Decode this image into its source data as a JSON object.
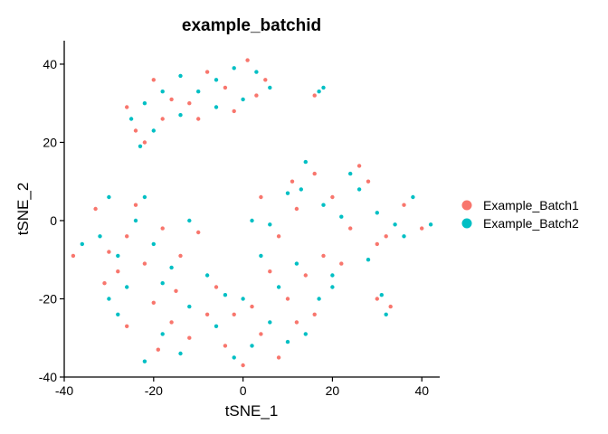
{
  "chart_data": {
    "type": "scatter",
    "title": "example_batchid",
    "xlabel": "tSNE_1",
    "ylabel": "tSNE_2",
    "xlim": [
      -40,
      44
    ],
    "ylim": [
      -40,
      46
    ],
    "xticks": [
      {
        "value": -40,
        "label": "-40"
      },
      {
        "value": -20,
        "label": "-20"
      },
      {
        "value": 0,
        "label": "0"
      },
      {
        "value": 20,
        "label": "20"
      },
      {
        "value": 40,
        "label": "40"
      }
    ],
    "yticks": [
      {
        "value": -40,
        "label": "-40"
      },
      {
        "value": -20,
        "label": "-20"
      },
      {
        "value": 0,
        "label": "0"
      },
      {
        "value": 20,
        "label": "20"
      },
      {
        "value": 40,
        "label": "40"
      }
    ],
    "grid": false,
    "legend_position": "right",
    "series": [
      {
        "name": "Example_Batch1",
        "color": "#F8766D",
        "points": [
          [
            -26,
            29
          ],
          [
            -24,
            23
          ],
          [
            -20,
            36
          ],
          [
            -16,
            31
          ],
          [
            -12,
            30
          ],
          [
            -8,
            38
          ],
          [
            -4,
            34
          ],
          [
            -2,
            28
          ],
          [
            1,
            41
          ],
          [
            5,
            36
          ],
          [
            -18,
            26
          ],
          [
            -10,
            26
          ],
          [
            3,
            32
          ],
          [
            -22,
            20
          ],
          [
            -30,
            -8
          ],
          [
            -26,
            -4
          ],
          [
            -22,
            -11
          ],
          [
            -18,
            -2
          ],
          [
            -14,
            -9
          ],
          [
            -10,
            -3
          ],
          [
            -33,
            3
          ],
          [
            -20,
            -21
          ],
          [
            -15,
            -18
          ],
          [
            -28,
            -13
          ],
          [
            -24,
            4
          ],
          [
            -8,
            -24
          ],
          [
            -4,
            -32
          ],
          [
            0,
            -37
          ],
          [
            4,
            -29
          ],
          [
            8,
            -35
          ],
          [
            -12,
            -30
          ],
          [
            -16,
            -26
          ],
          [
            12,
            -26
          ],
          [
            2,
            -22
          ],
          [
            -6,
            -17
          ],
          [
            6,
            -13
          ],
          [
            10,
            -20
          ],
          [
            14,
            -14
          ],
          [
            16,
            -24
          ],
          [
            8,
            -4
          ],
          [
            12,
            3
          ],
          [
            16,
            12
          ],
          [
            20,
            6
          ],
          [
            24,
            -2
          ],
          [
            28,
            10
          ],
          [
            32,
            -4
          ],
          [
            36,
            4
          ],
          [
            40,
            -2
          ],
          [
            18,
            -9
          ],
          [
            26,
            14
          ],
          [
            30,
            -6
          ],
          [
            22,
            -11
          ],
          [
            4,
            6
          ],
          [
            -38,
            -9
          ],
          [
            16,
            32
          ],
          [
            30,
            -20
          ],
          [
            33,
            -22
          ],
          [
            11,
            10
          ],
          [
            -31,
            -16
          ],
          [
            -19,
            -33
          ],
          [
            -2,
            -24
          ],
          [
            -26,
            -27
          ]
        ]
      },
      {
        "name": "Example_Batch2",
        "color": "#00BFC4",
        "points": [
          [
            -25,
            26
          ],
          [
            -22,
            30
          ],
          [
            -18,
            33
          ],
          [
            -14,
            37
          ],
          [
            -10,
            33
          ],
          [
            -6,
            36
          ],
          [
            -2,
            39
          ],
          [
            3,
            38
          ],
          [
            6,
            34
          ],
          [
            -20,
            23
          ],
          [
            -14,
            27
          ],
          [
            -6,
            29
          ],
          [
            0,
            31
          ],
          [
            -23,
            19
          ],
          [
            -32,
            -4
          ],
          [
            -28,
            -9
          ],
          [
            -24,
            0
          ],
          [
            -20,
            -6
          ],
          [
            -16,
            -12
          ],
          [
            -12,
            0
          ],
          [
            -30,
            6
          ],
          [
            -18,
            -16
          ],
          [
            -12,
            -22
          ],
          [
            -26,
            -17
          ],
          [
            -22,
            6
          ],
          [
            -6,
            -27
          ],
          [
            -2,
            -35
          ],
          [
            2,
            -32
          ],
          [
            6,
            -26
          ],
          [
            10,
            -31
          ],
          [
            -14,
            -34
          ],
          [
            -18,
            -29
          ],
          [
            14,
            -29
          ],
          [
            0,
            -20
          ],
          [
            -8,
            -14
          ],
          [
            4,
            -9
          ],
          [
            8,
            -17
          ],
          [
            12,
            -11
          ],
          [
            17,
            -20
          ],
          [
            6,
            -1
          ],
          [
            10,
            7
          ],
          [
            14,
            15
          ],
          [
            18,
            4
          ],
          [
            22,
            1
          ],
          [
            26,
            8
          ],
          [
            30,
            2
          ],
          [
            34,
            -1
          ],
          [
            38,
            6
          ],
          [
            20,
            -14
          ],
          [
            24,
            12
          ],
          [
            28,
            -10
          ],
          [
            20,
            -17
          ],
          [
            2,
            0
          ],
          [
            -36,
            -6
          ],
          [
            17,
            33
          ],
          [
            18,
            34
          ],
          [
            31,
            -19
          ],
          [
            32,
            -24
          ],
          [
            13,
            8
          ],
          [
            -30,
            -20
          ],
          [
            -22,
            -36
          ],
          [
            -4,
            -19
          ],
          [
            -28,
            -24
          ],
          [
            36,
            -4
          ],
          [
            42,
            -1
          ]
        ]
      }
    ]
  }
}
